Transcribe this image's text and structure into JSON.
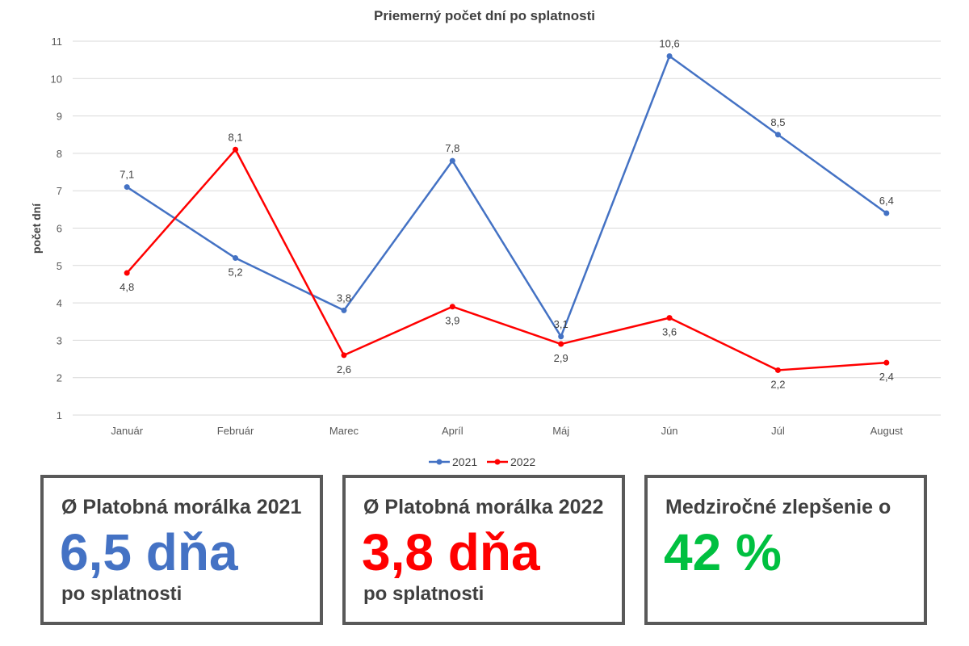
{
  "chart_data": {
    "type": "line",
    "title": "Priemerný počet dní po splatnosti",
    "xlabel": "",
    "ylabel": "počet dní",
    "categories": [
      "Január",
      "Február",
      "Marec",
      "Apríl",
      "Máj",
      "Jún",
      "Júl",
      "August"
    ],
    "ylim": [
      1,
      11
    ],
    "yticks": [
      "1",
      "2",
      "3",
      "4",
      "5",
      "6",
      "7",
      "8",
      "9",
      "10",
      "11"
    ],
    "grid": true,
    "legend_position": "bottom",
    "series": [
      {
        "name": "2021",
        "color": "#4472C4",
        "values": [
          7.1,
          5.2,
          3.8,
          7.8,
          3.1,
          10.6,
          8.5,
          6.4
        ],
        "labels": [
          "7,1",
          "5,2",
          "3,8",
          "7,8",
          "3,1",
          "10,6",
          "8,5",
          "6,4"
        ]
      },
      {
        "name": "2022",
        "color": "#FF0000",
        "values": [
          4.8,
          8.1,
          2.6,
          3.9,
          2.9,
          3.6,
          2.2,
          2.4
        ],
        "labels": [
          "4,8",
          "8,1",
          "2,6",
          "3,9",
          "2,9",
          "3,6",
          "2,2",
          "2,4"
        ]
      }
    ]
  },
  "kpis": [
    {
      "title": "Ø Platobná morálka 2021",
      "value": "6,5 dňa",
      "sub": "po splatnosti",
      "color": "#4472C4"
    },
    {
      "title": "Ø Platobná morálka 2022",
      "value": "3,8 dňa",
      "sub": "po splatnosti",
      "color": "#FF0000"
    },
    {
      "title": "Medziročné zlepšenie o",
      "value": "42 %",
      "sub": "",
      "color": "#00C040"
    }
  ]
}
